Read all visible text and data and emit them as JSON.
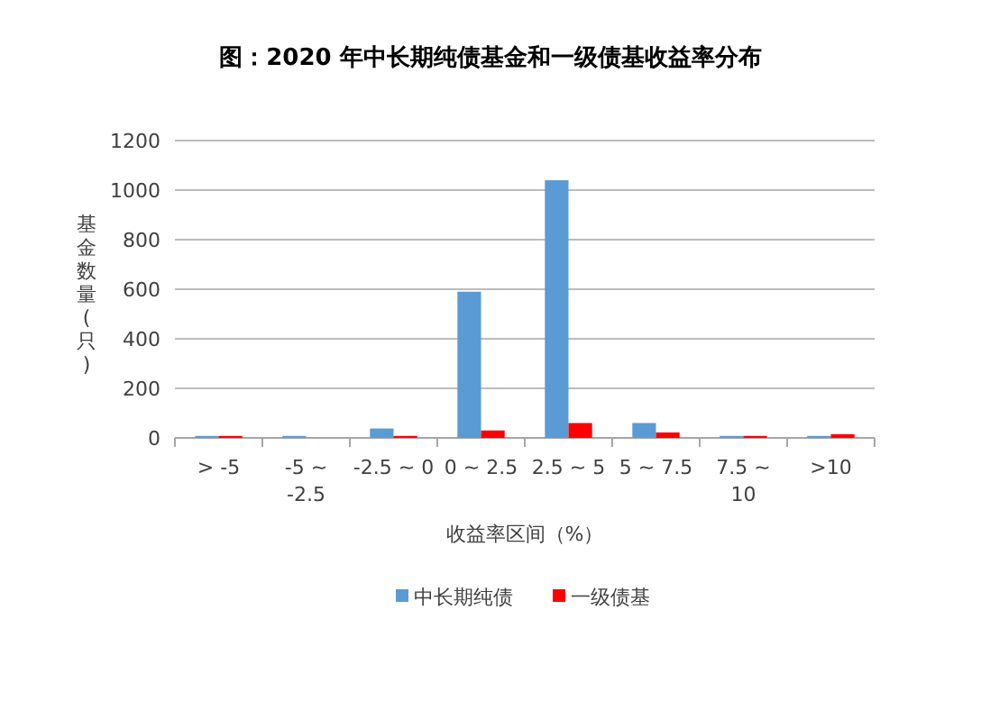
{
  "chart_data": {
    "type": "bar",
    "title": "图：2020 年中长期纯债基金和一级债基收益率分布",
    "xlabel": "收益率区间（%）",
    "ylabel": "基金数量(只)",
    "categories": [
      "> -5",
      "-5 ~ -2.5",
      "-2.5 ~ 0",
      "0 ~ 2.5",
      "2.5 ~ 5",
      "5 ~ 7.5",
      "7.5 ~ 10",
      ">10"
    ],
    "series": [
      {
        "name": "中长期纯债",
        "color": "#5b9bd5",
        "values": [
          8,
          8,
          38,
          590,
          1040,
          60,
          8,
          8
        ]
      },
      {
        "name": "一级债基",
        "color": "#ff0000",
        "values": [
          8,
          0,
          8,
          30,
          60,
          22,
          8,
          15
        ]
      }
    ],
    "ylim": [
      0,
      1200
    ],
    "yticks": [
      0,
      200,
      400,
      600,
      800,
      1000,
      1200
    ],
    "grid": "y",
    "legend": "bottom"
  }
}
